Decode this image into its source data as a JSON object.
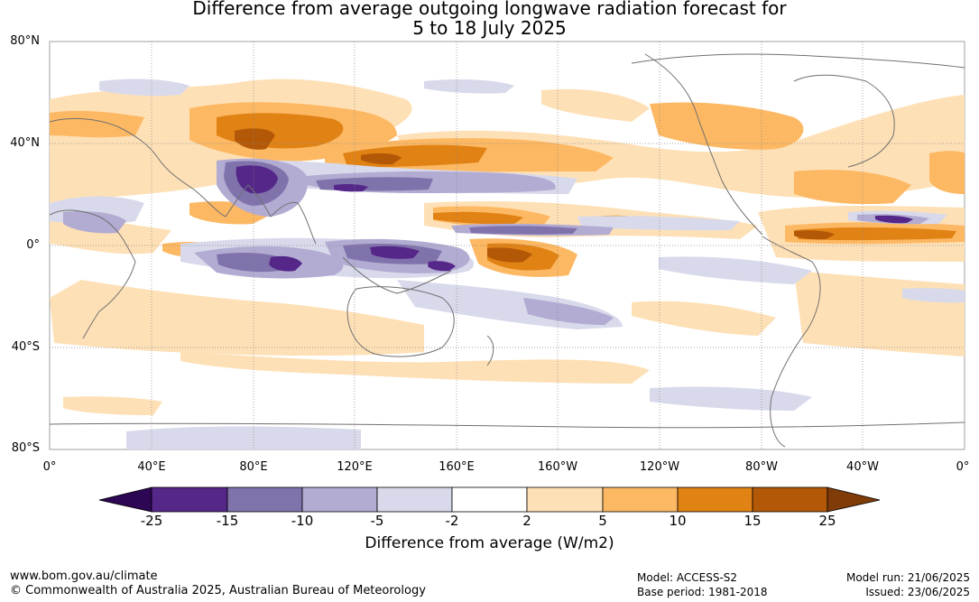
{
  "header": {
    "title_line1": "Difference from average outgoing longwave radiation forecast for",
    "title_line2": "5 to 18 July 2025"
  },
  "map": {
    "projection": "equirectangular, centred 180°",
    "lat_labels": [
      "80°N",
      "40°N",
      "0°",
      "40°S",
      "80°S"
    ],
    "lon_labels": [
      "0°",
      "40°E",
      "80°E",
      "120°E",
      "160°E",
      "160°W",
      "120°W",
      "80°W",
      "40°W",
      "0°"
    ],
    "grid_style": "dotted grey",
    "coastline_color": "#707070"
  },
  "colorbar": {
    "title": "Difference from average (W/m2)",
    "ticks": [
      "-25",
      "-15",
      "-10",
      "-5",
      "-2",
      "2",
      "5",
      "10",
      "15",
      "25"
    ],
    "colors": [
      "#2d0654",
      "#542788",
      "#8073ac",
      "#b2abd2",
      "#d8daeb",
      "#ffffff",
      "#fee0b6",
      "#fdb863",
      "#e08214",
      "#b35806",
      "#7f3b08"
    ],
    "extend": "both ends (triangles)"
  },
  "footer": {
    "website": "www.bom.gov.au/climate",
    "copyright": "© Commonwealth of Australia 2025, Australian Bureau of Meteorology",
    "model": "Model: ACCESS-S2",
    "base_period": "Base period: 1981-2018",
    "model_run": "Model run: 21/06/2025",
    "issued": "Issued: 23/06/2025"
  }
}
